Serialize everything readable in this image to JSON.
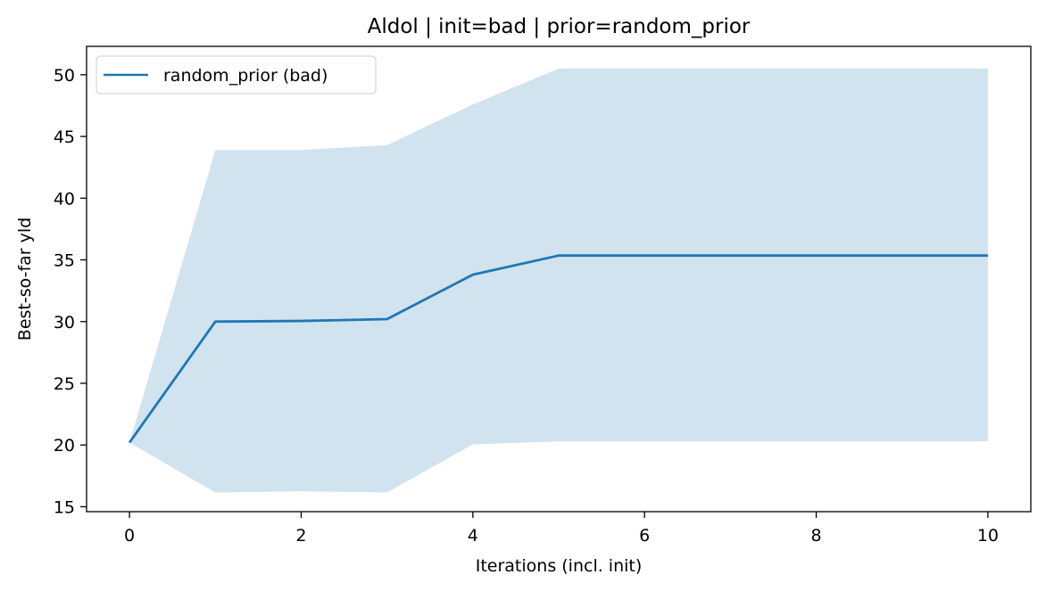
{
  "chart_data": {
    "type": "line",
    "title": "Aldol | init=bad | prior=random_prior",
    "xlabel": "Iterations (incl. init)",
    "ylabel": "Best-so-far yld",
    "xlim": [
      -0.5,
      10.5
    ],
    "ylim": [
      14.6,
      52.3
    ],
    "xticks": [
      0,
      2,
      4,
      6,
      8,
      10
    ],
    "yticks": [
      15,
      20,
      25,
      30,
      35,
      40,
      45,
      50
    ],
    "grid": false,
    "legend_position": "top-left",
    "series": [
      {
        "name": "random_prior (bad)",
        "color": "#1f77b4",
        "band_color": "#d1e3ef",
        "x": [
          0,
          1,
          2,
          3,
          4,
          5,
          6,
          7,
          8,
          9,
          10
        ],
        "mean": [
          20.2,
          30.0,
          30.05,
          30.2,
          33.8,
          35.35,
          35.35,
          35.35,
          35.35,
          35.35,
          35.35
        ],
        "upper": [
          20.2,
          43.9,
          43.9,
          44.3,
          47.6,
          50.5,
          50.5,
          50.5,
          50.5,
          50.5,
          50.5
        ],
        "lower": [
          20.2,
          16.15,
          16.25,
          16.15,
          20.05,
          20.3,
          20.3,
          20.3,
          20.3,
          20.3,
          20.3
        ]
      }
    ]
  }
}
